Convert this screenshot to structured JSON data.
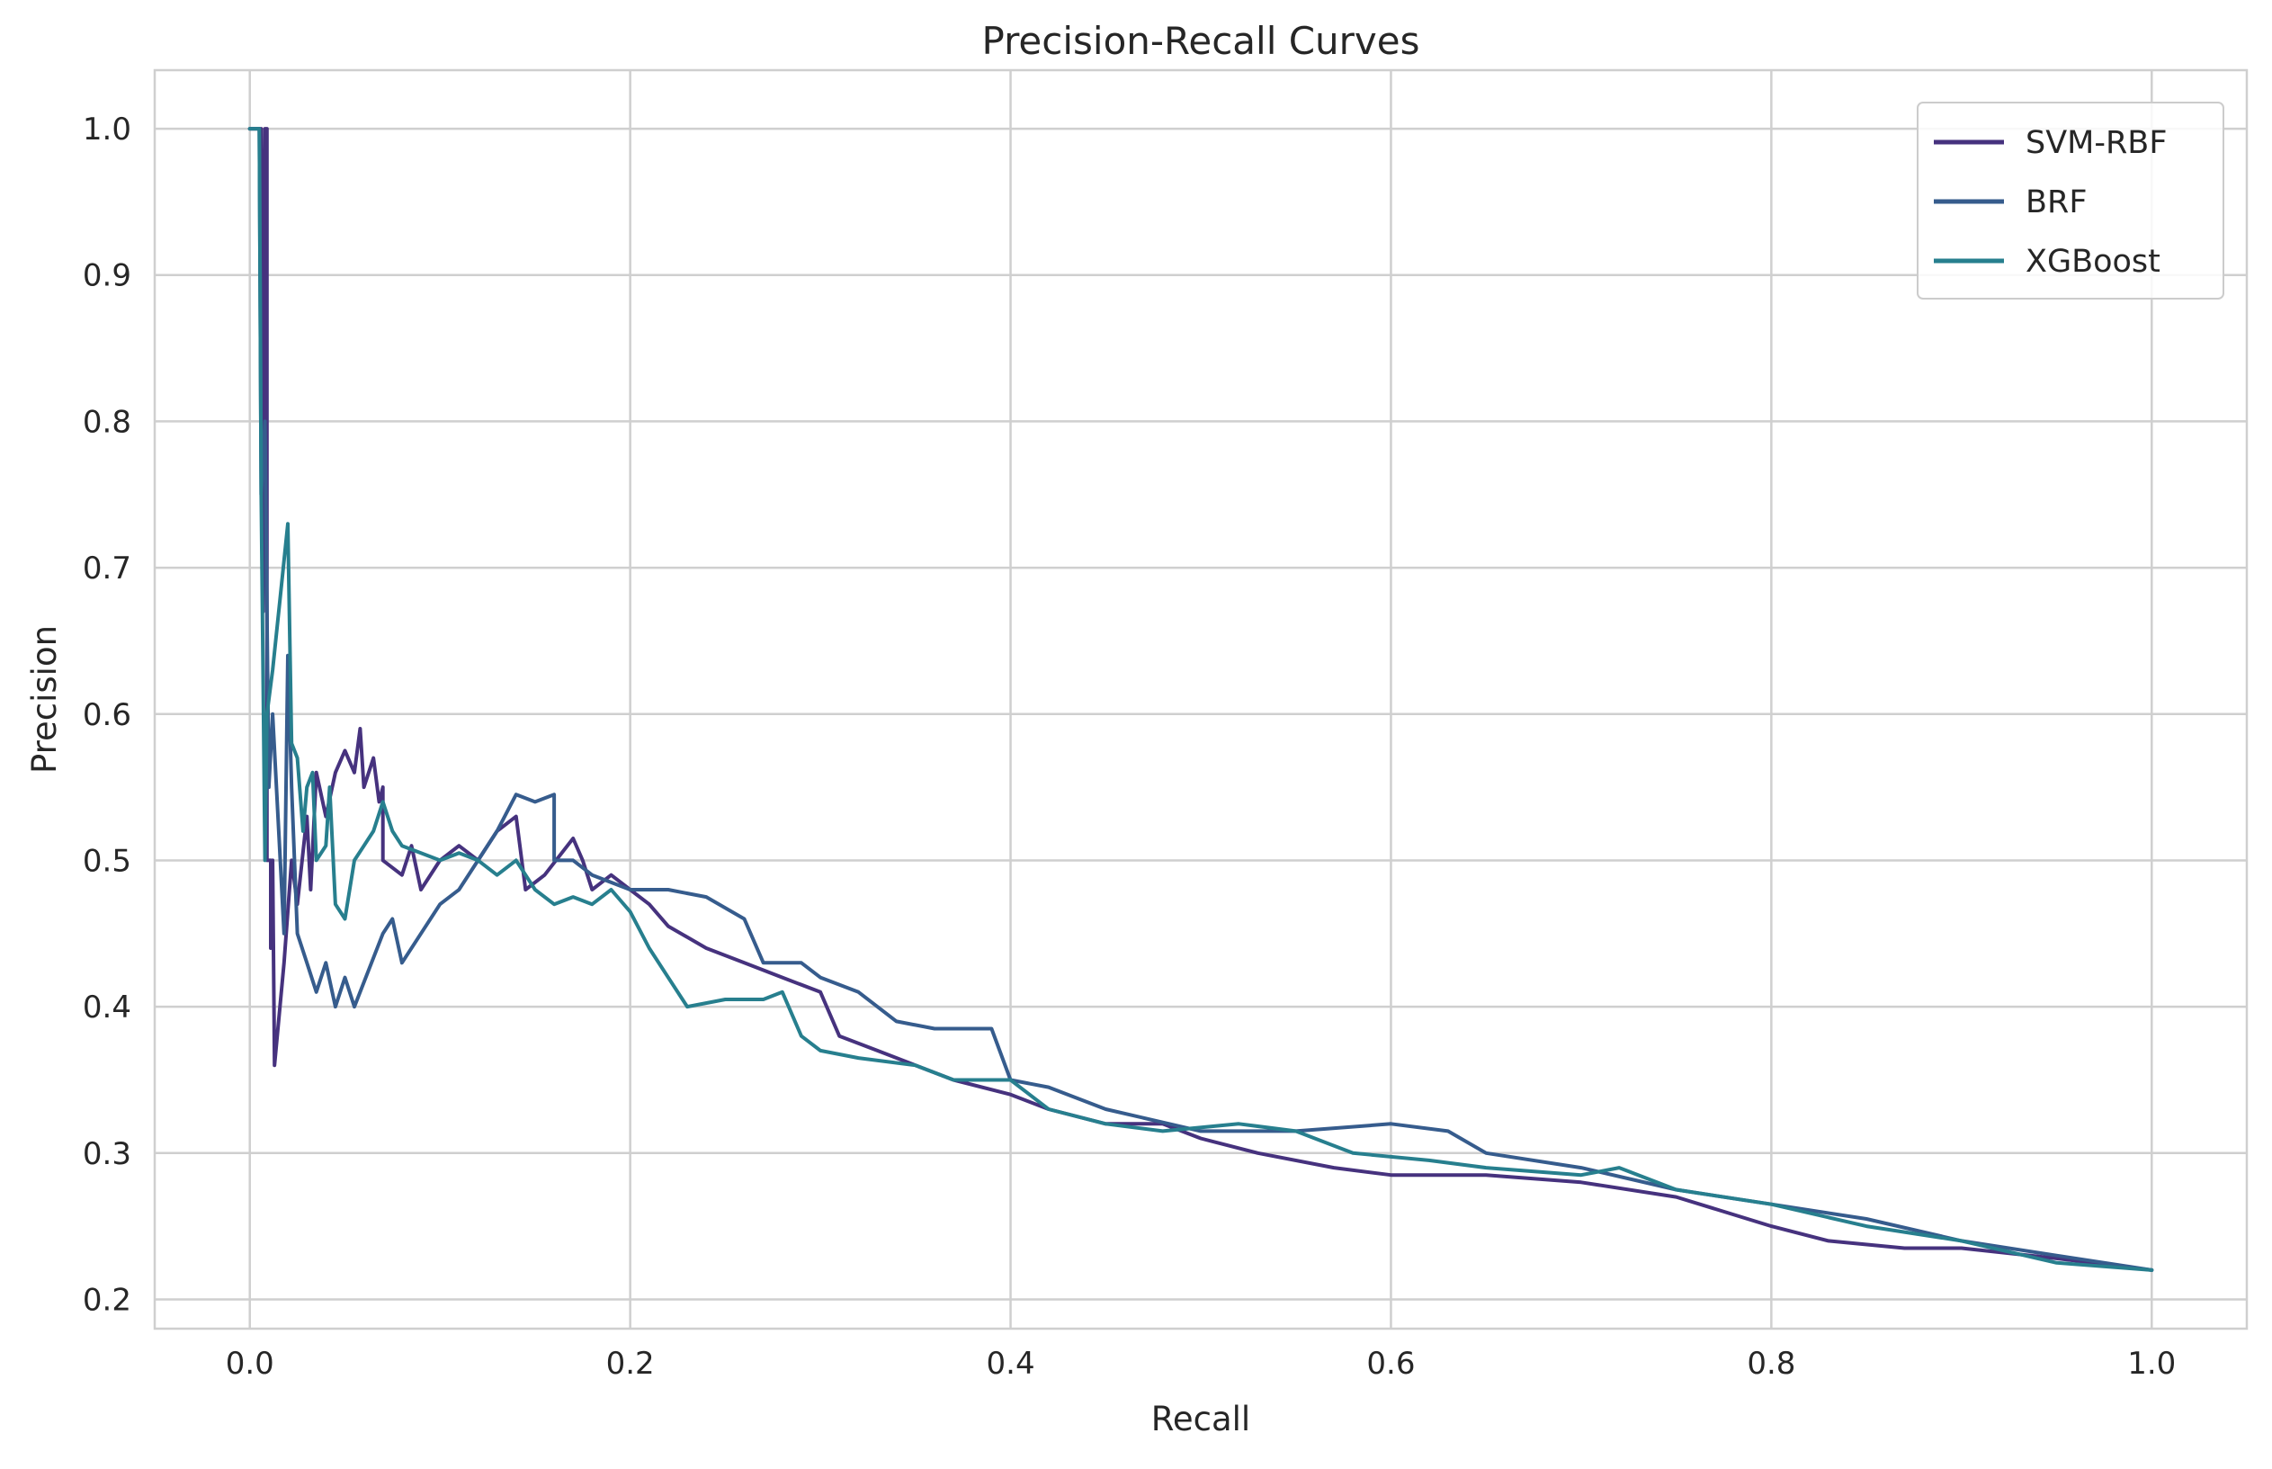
{
  "chart_data": {
    "type": "line",
    "title": "Precision-Recall Curves",
    "xlabel": "Recall",
    "ylabel": "Precision",
    "xlim": [
      -0.05,
      1.05
    ],
    "ylim": [
      0.18,
      1.04
    ],
    "xticks": [
      0.0,
      0.2,
      0.4,
      0.6,
      0.8,
      1.0
    ],
    "xtick_labels": [
      "0.0",
      "0.2",
      "0.4",
      "0.6",
      "0.8",
      "1.0"
    ],
    "yticks": [
      0.2,
      0.3,
      0.4,
      0.5,
      0.6,
      0.7,
      0.8,
      0.9,
      1.0
    ],
    "ytick_labels": [
      "0.2",
      "0.3",
      "0.4",
      "0.5",
      "0.6",
      "0.7",
      "0.8",
      "0.9",
      "1.0"
    ],
    "grid": true,
    "legend_position": "top-right",
    "series": [
      {
        "name": "SVM-RBF",
        "color": "#46327e",
        "points": [
          [
            0.0,
            1.0
          ],
          [
            0.006,
            1.0
          ],
          [
            0.007,
            0.67
          ],
          [
            0.008,
            1.0
          ],
          [
            0.009,
            1.0
          ],
          [
            0.009,
            0.5
          ],
          [
            0.011,
            0.5
          ],
          [
            0.011,
            0.44
          ],
          [
            0.012,
            0.5
          ],
          [
            0.013,
            0.36
          ],
          [
            0.018,
            0.43
          ],
          [
            0.022,
            0.5
          ],
          [
            0.025,
            0.47
          ],
          [
            0.03,
            0.53
          ],
          [
            0.032,
            0.48
          ],
          [
            0.035,
            0.56
          ],
          [
            0.04,
            0.53
          ],
          [
            0.045,
            0.56
          ],
          [
            0.05,
            0.575
          ],
          [
            0.055,
            0.56
          ],
          [
            0.058,
            0.59
          ],
          [
            0.06,
            0.55
          ],
          [
            0.065,
            0.57
          ],
          [
            0.068,
            0.54
          ],
          [
            0.07,
            0.55
          ],
          [
            0.07,
            0.5
          ],
          [
            0.08,
            0.49
          ],
          [
            0.085,
            0.51
          ],
          [
            0.09,
            0.48
          ],
          [
            0.1,
            0.5
          ],
          [
            0.11,
            0.51
          ],
          [
            0.12,
            0.5
          ],
          [
            0.13,
            0.52
          ],
          [
            0.14,
            0.53
          ],
          [
            0.145,
            0.48
          ],
          [
            0.155,
            0.49
          ],
          [
            0.17,
            0.515
          ],
          [
            0.175,
            0.5
          ],
          [
            0.18,
            0.48
          ],
          [
            0.19,
            0.49
          ],
          [
            0.2,
            0.48
          ],
          [
            0.21,
            0.47
          ],
          [
            0.22,
            0.455
          ],
          [
            0.24,
            0.44
          ],
          [
            0.26,
            0.43
          ],
          [
            0.28,
            0.42
          ],
          [
            0.3,
            0.41
          ],
          [
            0.31,
            0.38
          ],
          [
            0.33,
            0.37
          ],
          [
            0.35,
            0.36
          ],
          [
            0.37,
            0.35
          ],
          [
            0.4,
            0.34
          ],
          [
            0.42,
            0.33
          ],
          [
            0.45,
            0.32
          ],
          [
            0.48,
            0.32
          ],
          [
            0.5,
            0.31
          ],
          [
            0.53,
            0.3
          ],
          [
            0.57,
            0.29
          ],
          [
            0.6,
            0.285
          ],
          [
            0.65,
            0.285
          ],
          [
            0.7,
            0.28
          ],
          [
            0.75,
            0.27
          ],
          [
            0.8,
            0.25
          ],
          [
            0.83,
            0.24
          ],
          [
            0.87,
            0.235
          ],
          [
            0.9,
            0.235
          ],
          [
            0.95,
            0.228
          ],
          [
            1.0,
            0.22
          ]
        ]
      },
      {
        "name": "BRF",
        "color": "#365c8d",
        "points": [
          [
            0.0,
            1.0
          ],
          [
            0.005,
            1.0
          ],
          [
            0.006,
            0.75
          ],
          [
            0.008,
            0.8
          ],
          [
            0.009,
            0.67
          ],
          [
            0.01,
            0.55
          ],
          [
            0.012,
            0.6
          ],
          [
            0.016,
            0.5
          ],
          [
            0.018,
            0.45
          ],
          [
            0.02,
            0.64
          ],
          [
            0.022,
            0.55
          ],
          [
            0.025,
            0.45
          ],
          [
            0.03,
            0.43
          ],
          [
            0.035,
            0.41
          ],
          [
            0.04,
            0.43
          ],
          [
            0.045,
            0.4
          ],
          [
            0.05,
            0.42
          ],
          [
            0.055,
            0.4
          ],
          [
            0.07,
            0.45
          ],
          [
            0.075,
            0.46
          ],
          [
            0.08,
            0.43
          ],
          [
            0.09,
            0.45
          ],
          [
            0.1,
            0.47
          ],
          [
            0.11,
            0.48
          ],
          [
            0.12,
            0.5
          ],
          [
            0.13,
            0.52
          ],
          [
            0.14,
            0.545
          ],
          [
            0.15,
            0.54
          ],
          [
            0.16,
            0.545
          ],
          [
            0.16,
            0.5
          ],
          [
            0.17,
            0.5
          ],
          [
            0.18,
            0.49
          ],
          [
            0.2,
            0.48
          ],
          [
            0.22,
            0.48
          ],
          [
            0.24,
            0.475
          ],
          [
            0.26,
            0.46
          ],
          [
            0.27,
            0.43
          ],
          [
            0.29,
            0.43
          ],
          [
            0.3,
            0.42
          ],
          [
            0.32,
            0.41
          ],
          [
            0.34,
            0.39
          ],
          [
            0.36,
            0.385
          ],
          [
            0.39,
            0.385
          ],
          [
            0.4,
            0.35
          ],
          [
            0.42,
            0.345
          ],
          [
            0.45,
            0.33
          ],
          [
            0.5,
            0.315
          ],
          [
            0.55,
            0.315
          ],
          [
            0.6,
            0.32
          ],
          [
            0.63,
            0.315
          ],
          [
            0.65,
            0.3
          ],
          [
            0.7,
            0.29
          ],
          [
            0.75,
            0.275
          ],
          [
            0.8,
            0.265
          ],
          [
            0.85,
            0.255
          ],
          [
            0.9,
            0.24
          ],
          [
            0.95,
            0.23
          ],
          [
            1.0,
            0.22
          ]
        ]
      },
      {
        "name": "XGBoost",
        "color": "#277f8e",
        "points": [
          [
            0.0,
            1.0
          ],
          [
            0.005,
            1.0
          ],
          [
            0.006,
            0.75
          ],
          [
            0.008,
            0.5
          ],
          [
            0.009,
            0.6
          ],
          [
            0.012,
            0.63
          ],
          [
            0.016,
            0.68
          ],
          [
            0.02,
            0.73
          ],
          [
            0.022,
            0.58
          ],
          [
            0.025,
            0.57
          ],
          [
            0.028,
            0.52
          ],
          [
            0.03,
            0.55
          ],
          [
            0.033,
            0.56
          ],
          [
            0.035,
            0.5
          ],
          [
            0.04,
            0.51
          ],
          [
            0.042,
            0.55
          ],
          [
            0.045,
            0.47
          ],
          [
            0.05,
            0.46
          ],
          [
            0.055,
            0.5
          ],
          [
            0.06,
            0.51
          ],
          [
            0.065,
            0.52
          ],
          [
            0.07,
            0.54
          ],
          [
            0.075,
            0.52
          ],
          [
            0.08,
            0.51
          ],
          [
            0.09,
            0.505
          ],
          [
            0.1,
            0.5
          ],
          [
            0.11,
            0.505
          ],
          [
            0.12,
            0.5
          ],
          [
            0.13,
            0.49
          ],
          [
            0.14,
            0.5
          ],
          [
            0.15,
            0.48
          ],
          [
            0.16,
            0.47
          ],
          [
            0.17,
            0.475
          ],
          [
            0.18,
            0.47
          ],
          [
            0.19,
            0.48
          ],
          [
            0.2,
            0.465
          ],
          [
            0.21,
            0.44
          ],
          [
            0.22,
            0.42
          ],
          [
            0.23,
            0.4
          ],
          [
            0.25,
            0.405
          ],
          [
            0.27,
            0.405
          ],
          [
            0.28,
            0.41
          ],
          [
            0.29,
            0.38
          ],
          [
            0.3,
            0.37
          ],
          [
            0.32,
            0.365
          ],
          [
            0.35,
            0.36
          ],
          [
            0.37,
            0.35
          ],
          [
            0.4,
            0.35
          ],
          [
            0.42,
            0.33
          ],
          [
            0.45,
            0.32
          ],
          [
            0.48,
            0.315
          ],
          [
            0.52,
            0.32
          ],
          [
            0.55,
            0.315
          ],
          [
            0.58,
            0.3
          ],
          [
            0.62,
            0.295
          ],
          [
            0.65,
            0.29
          ],
          [
            0.7,
            0.285
          ],
          [
            0.72,
            0.29
          ],
          [
            0.75,
            0.275
          ],
          [
            0.8,
            0.265
          ],
          [
            0.85,
            0.25
          ],
          [
            0.9,
            0.24
          ],
          [
            0.95,
            0.225
          ],
          [
            1.0,
            0.22
          ]
        ]
      }
    ]
  }
}
